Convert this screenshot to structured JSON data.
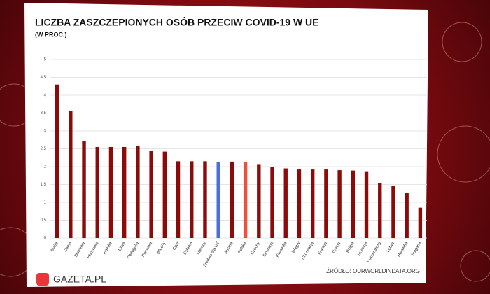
{
  "chart_data": {
    "type": "bar",
    "title": "LICZBA ZASZCZEPIONYCH OSÓB PRZECIW COVID-19 W UE",
    "subtitle": "(W PROC.)",
    "source": "ŹRÓDŁO: OURWORLDINDATA.ORG",
    "brand": "GAZETA.PL",
    "categories": [
      "Malta",
      "Dania",
      "Słowenia",
      "Hiszpania",
      "Irlandia",
      "Litwa",
      "Portugalia",
      "Rumunia",
      "Włochy",
      "Cypr",
      "Estonia",
      "Niemcy",
      "Średnia dla UE",
      "Austria",
      "Polska",
      "Czechy",
      "Słowacja",
      "Finlandia",
      "Węgry",
      "Chorwacja",
      "Francja",
      "Grecja",
      "Belgia",
      "Szwecja",
      "Luksemburg",
      "Łotwa",
      "Holandia",
      "Bułgaria"
    ],
    "values": [
      4.3,
      3.55,
      2.72,
      2.55,
      2.55,
      2.55,
      2.57,
      2.45,
      2.42,
      2.15,
      2.15,
      2.15,
      2.12,
      2.14,
      2.12,
      2.07,
      1.98,
      1.95,
      1.92,
      1.92,
      1.92,
      1.9,
      1.89,
      1.87,
      1.53,
      1.47,
      1.27,
      0.85
    ],
    "colors": [
      "#8b0a0a",
      "#8b0a0a",
      "#8b0a0a",
      "#8b0a0a",
      "#8b0a0a",
      "#8b0a0a",
      "#8b0a0a",
      "#8b0a0a",
      "#8b0a0a",
      "#8b0a0a",
      "#8b0a0a",
      "#8b0a0a",
      "#4a6fe0",
      "#8b0a0a",
      "#f0503a",
      "#8b0a0a",
      "#8b0a0a",
      "#8b0a0a",
      "#8b0a0a",
      "#8b0a0a",
      "#8b0a0a",
      "#8b0a0a",
      "#8b0a0a",
      "#8b0a0a",
      "#8b0a0a",
      "#8b0a0a",
      "#8b0a0a",
      "#8b0a0a"
    ],
    "ylim": [
      0,
      5
    ],
    "yticks": [
      0,
      {
        "value": 0.5,
        "label": "0,5"
      },
      1,
      {
        "value": 1.5,
        "label": "1,5"
      },
      2,
      {
        "value": 2.5,
        "label": "2,5"
      },
      3,
      {
        "value": 3.5,
        "label": "3,5"
      },
      4,
      {
        "value": 4.5,
        "label": "4,5"
      },
      5
    ],
    "grid": true
  }
}
